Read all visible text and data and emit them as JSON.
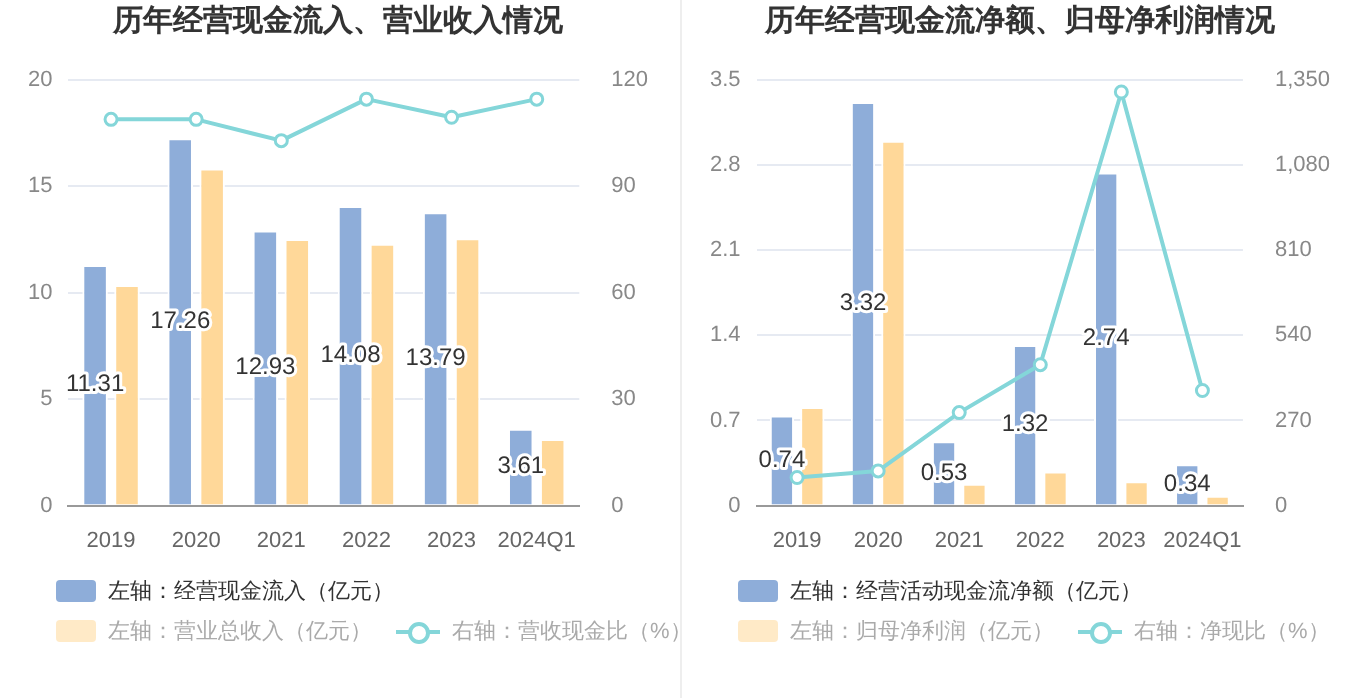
{
  "chart_data": [
    {
      "type": "bar",
      "title": "历年经营现金流入、营业收入情况",
      "categories": [
        "2019",
        "2020",
        "2021",
        "2022",
        "2023",
        "2024Q1"
      ],
      "ylim": [
        0,
        20
      ],
      "yticks": [
        0,
        5,
        10,
        15,
        20
      ],
      "y2lim": [
        0,
        120
      ],
      "y2ticks": [
        0,
        30,
        60,
        90,
        120
      ],
      "grid": "y",
      "legend": "bottom",
      "marker": "circle",
      "series": [
        {
          "name": "左轴：经营现金流入（亿元）",
          "color": "#8eadd9",
          "values": [
            11.31,
            17.26,
            12.93,
            14.08,
            13.79,
            3.61
          ],
          "value_labels": [
            "11.31",
            "17.26",
            "12.93",
            "14.08",
            "13.79",
            "3.61"
          ]
        },
        {
          "name": "左轴：营业总收入（亿元）",
          "color": "#ffd899",
          "values": [
            10.37,
            15.84,
            12.53,
            12.31,
            12.56,
            3.13
          ]
        },
        {
          "name": "右轴：营收现金比（%）",
          "type": "line",
          "axis": "y2",
          "color": "#84d6d9",
          "values": [
            108.9,
            108.9,
            102.9,
            114.6,
            109.5,
            114.6
          ]
        }
      ]
    },
    {
      "type": "bar",
      "title": "历年经营现金流净额、归母净利润情况",
      "categories": [
        "2019",
        "2020",
        "2021",
        "2022",
        "2023",
        "2024Q1"
      ],
      "ylim": [
        0,
        3.5
      ],
      "yticks": [
        0,
        0.7,
        1.4,
        2.1,
        2.8,
        3.5
      ],
      "y2lim": [
        0,
        1350
      ],
      "y2ticks": [
        0,
        270,
        540,
        810,
        {
          "value": 1080,
          "label": "1,080"
        },
        {
          "value": 1350,
          "label": "1,350"
        }
      ],
      "grid": "y",
      "legend": "bottom",
      "marker": "circle",
      "series": [
        {
          "name": "左轴：经营活动现金流净额（亿元）",
          "color": "#8eadd9",
          "values": [
            0.74,
            3.32,
            0.53,
            1.32,
            2.74,
            0.34
          ],
          "value_labels": [
            "0.74",
            "3.32",
            "0.53",
            "1.32",
            "2.74",
            "0.34"
          ]
        },
        {
          "name": "左轴：归母净利润（亿元）",
          "color": "#ffd899",
          "values": [
            0.81,
            3.0,
            0.18,
            0.28,
            0.2,
            0.08
          ]
        },
        {
          "name": "右轴：净现比（%）",
          "type": "line",
          "axis": "y2",
          "color": "#84d6d9",
          "values": [
            89,
            110,
            295,
            447,
            1312,
            365
          ]
        }
      ]
    }
  ]
}
